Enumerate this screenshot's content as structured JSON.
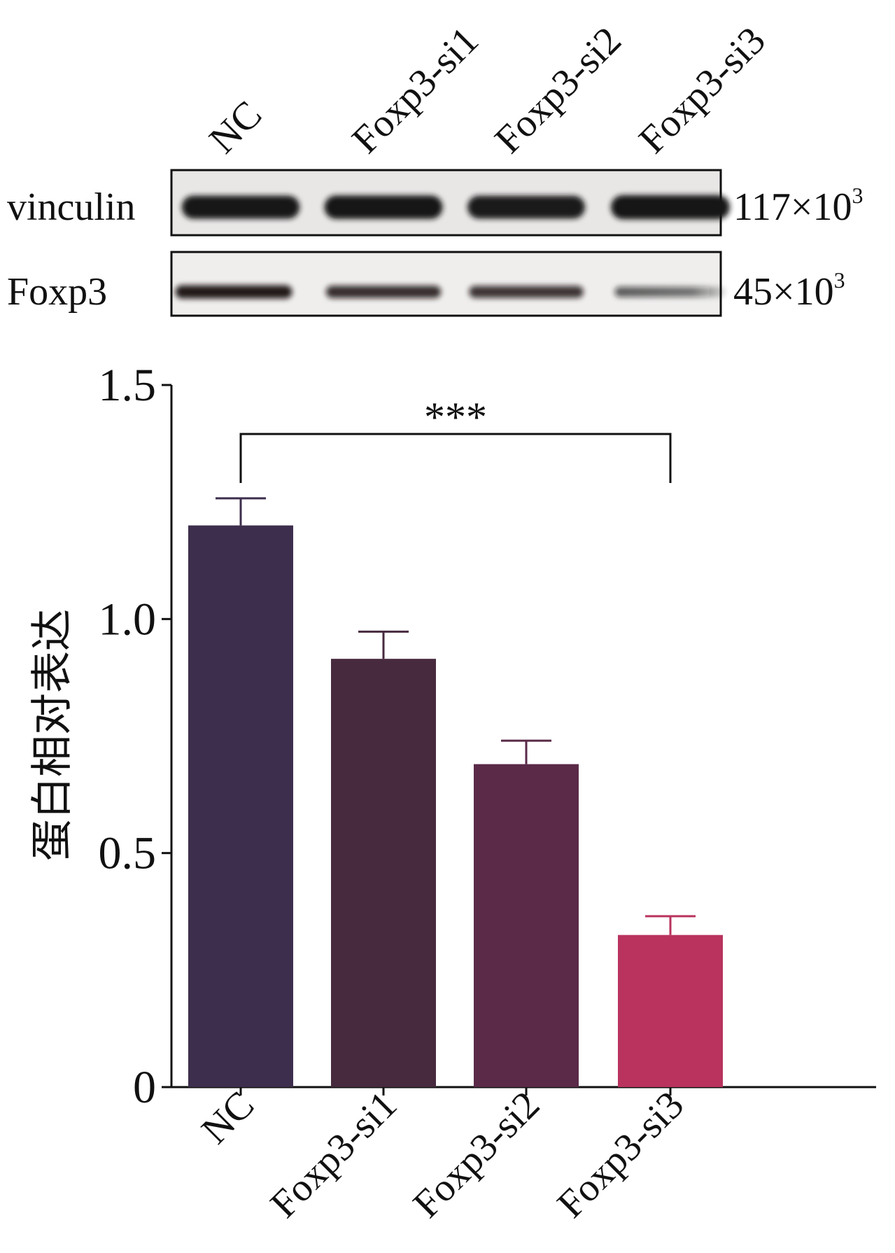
{
  "blot": {
    "lanes": [
      "NC",
      "Foxp3-si1",
      "Foxp3-si2",
      "Foxp3-si3"
    ],
    "rows": [
      {
        "label": "vinculin",
        "mw_base": "117×10",
        "mw_exp": "3",
        "intensity": [
          0.92,
          0.95,
          0.9,
          1.0
        ]
      },
      {
        "label": "Foxp3",
        "mw_base": "45×10",
        "mw_exp": "3",
        "intensity": [
          0.85,
          0.72,
          0.68,
          0.45
        ]
      }
    ]
  },
  "chart_data": {
    "type": "bar",
    "categories": [
      "NC",
      "Foxp3-si1",
      "Foxp3-si2",
      "Foxp3-si3"
    ],
    "values": [
      1.2,
      0.915,
      0.69,
      0.325
    ],
    "errors": [
      0.058,
      0.058,
      0.05,
      0.04
    ],
    "colors": [
      "#3d2e4d",
      "#472a3e",
      "#5a2a48",
      "#b9335e"
    ],
    "ylabel": "蛋白相对表达",
    "ylim": [
      0,
      1.5
    ],
    "yticks": [
      0,
      0.5,
      1.0,
      1.5
    ],
    "ytick_labels": [
      "0",
      "0.5",
      "1.0",
      "1.5"
    ],
    "grid": false,
    "significance": {
      "from": "NC",
      "to": "Foxp3-si3",
      "label": "***"
    }
  }
}
